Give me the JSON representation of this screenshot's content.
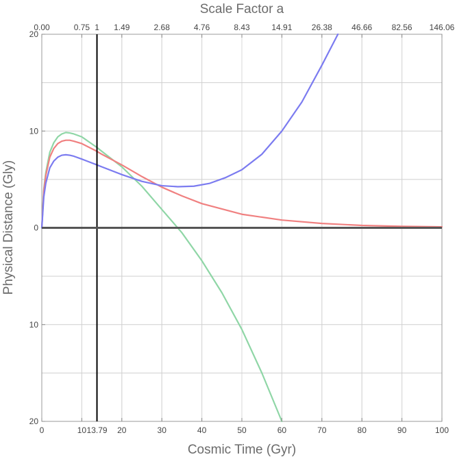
{
  "chart_data": {
    "type": "line",
    "title": "Scale Factor a",
    "xlabel": "Cosmic Time (Gyr)",
    "ylabel": "Physical Distance (Gly)",
    "xlim": [
      0,
      100
    ],
    "ylim": [
      -20,
      20
    ],
    "grid": true,
    "legend": "none",
    "x_ticks": [
      0,
      10,
      13.79,
      20,
      30,
      40,
      50,
      60,
      70,
      80,
      90,
      100
    ],
    "x_tick_labels": [
      "0",
      "10",
      "13.79",
      "20",
      "30",
      "40",
      "50",
      "60",
      "70",
      "80",
      "90",
      "100"
    ],
    "y_ticks": [
      20,
      10,
      0,
      -10,
      -20
    ],
    "y_tick_labels": [
      "20",
      "10",
      "0",
      "10",
      "20"
    ],
    "top_axis": {
      "label": "Scale Factor a",
      "positions": [
        0,
        10,
        13.79,
        20,
        30,
        40,
        50,
        60,
        70,
        80,
        90,
        100
      ],
      "labels": [
        "0.00",
        "0.75",
        "1",
        "1.49",
        "2.68",
        "4.76",
        "8.43",
        "14.91",
        "26.38",
        "46.66",
        "82.56",
        "146.06"
      ]
    },
    "reference_lines": [
      {
        "axis": "x",
        "value": 13.79,
        "color": "#000000"
      },
      {
        "axis": "y",
        "value": 0,
        "color": "#555555"
      }
    ],
    "series": [
      {
        "name": "green",
        "color": "#8fd6a6",
        "x": [
          0,
          0.5,
          1,
          2,
          3,
          4,
          5,
          6,
          7,
          8,
          10,
          13.79,
          15,
          20,
          25,
          30,
          35,
          40,
          45,
          50,
          55,
          60
        ],
        "y": [
          0,
          4.0,
          5.7,
          7.8,
          8.8,
          9.4,
          9.7,
          9.85,
          9.8,
          9.7,
          9.4,
          8.3,
          7.9,
          6.3,
          4.3,
          1.9,
          -0.5,
          -3.4,
          -6.7,
          -10.5,
          -15.0,
          -20.0
        ]
      },
      {
        "name": "red",
        "color": "#f08080",
        "x": [
          0,
          0.5,
          1,
          2,
          3,
          4,
          5,
          6,
          7,
          8,
          10,
          13.79,
          15,
          20,
          25,
          30,
          35,
          40,
          50,
          60,
          70,
          80,
          90,
          100
        ],
        "y": [
          0,
          3.8,
          5.4,
          7.3,
          8.2,
          8.7,
          8.95,
          9.05,
          9.05,
          8.95,
          8.7,
          7.9,
          7.6,
          6.5,
          5.3,
          4.2,
          3.3,
          2.5,
          1.4,
          0.8,
          0.45,
          0.25,
          0.15,
          0.1
        ]
      },
      {
        "name": "blue",
        "color": "#7b7bf0",
        "x": [
          0,
          0.5,
          1,
          2,
          3,
          4,
          5,
          6,
          7,
          8,
          10,
          13.79,
          15,
          20,
          25,
          30,
          34,
          38,
          42,
          46,
          50,
          55,
          60,
          65,
          70,
          74
        ],
        "y": [
          0,
          3.2,
          4.6,
          6.2,
          6.9,
          7.3,
          7.5,
          7.55,
          7.5,
          7.4,
          7.1,
          6.5,
          6.3,
          5.5,
          4.8,
          4.35,
          4.25,
          4.3,
          4.6,
          5.2,
          6.0,
          7.6,
          10.0,
          13.0,
          16.8,
          20.0
        ]
      }
    ]
  }
}
